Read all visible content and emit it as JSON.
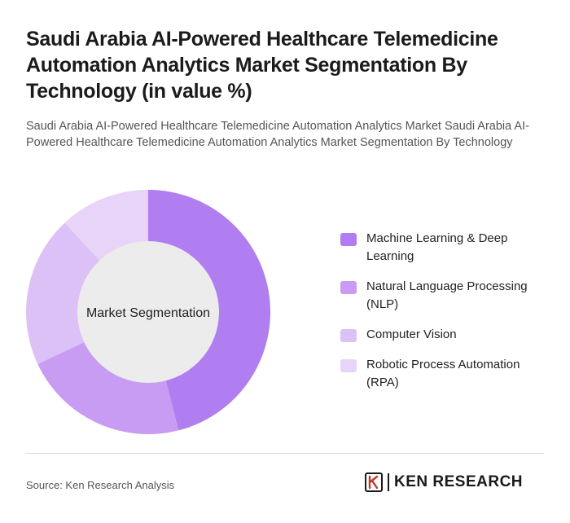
{
  "header": {
    "title": "Saudi Arabia AI-Powered Healthcare Telemedicine Automation Analytics Market Segmentation By Technology (in value %)",
    "subtitle": "Saudi Arabia AI-Powered Healthcare Telemedicine Automation Analytics Market Saudi Arabia AI-Powered Healthcare Telemedicine Automation Analytics Market Segmentation By Technology"
  },
  "chart_data": {
    "type": "pie",
    "variant": "donut",
    "center_label": "Market Segmentation",
    "legend_position": "right",
    "series": [
      {
        "name": "Machine Learning & Deep Learning",
        "value": 46,
        "color": "#b07ef0"
      },
      {
        "name": "Natural Language Processing (NLP)",
        "value": 22,
        "color": "#c79cf2"
      },
      {
        "name": "Computer Vision",
        "value": 20,
        "color": "#dcc1f6"
      },
      {
        "name": "Robotic Process Automation (RPA)",
        "value": 12,
        "color": "#e7d4f8"
      }
    ]
  },
  "footer": {
    "source": "Source: Ken Research Analysis",
    "brand": "KEN RESEARCH",
    "brand_icon": "ken-research-logo-icon"
  }
}
